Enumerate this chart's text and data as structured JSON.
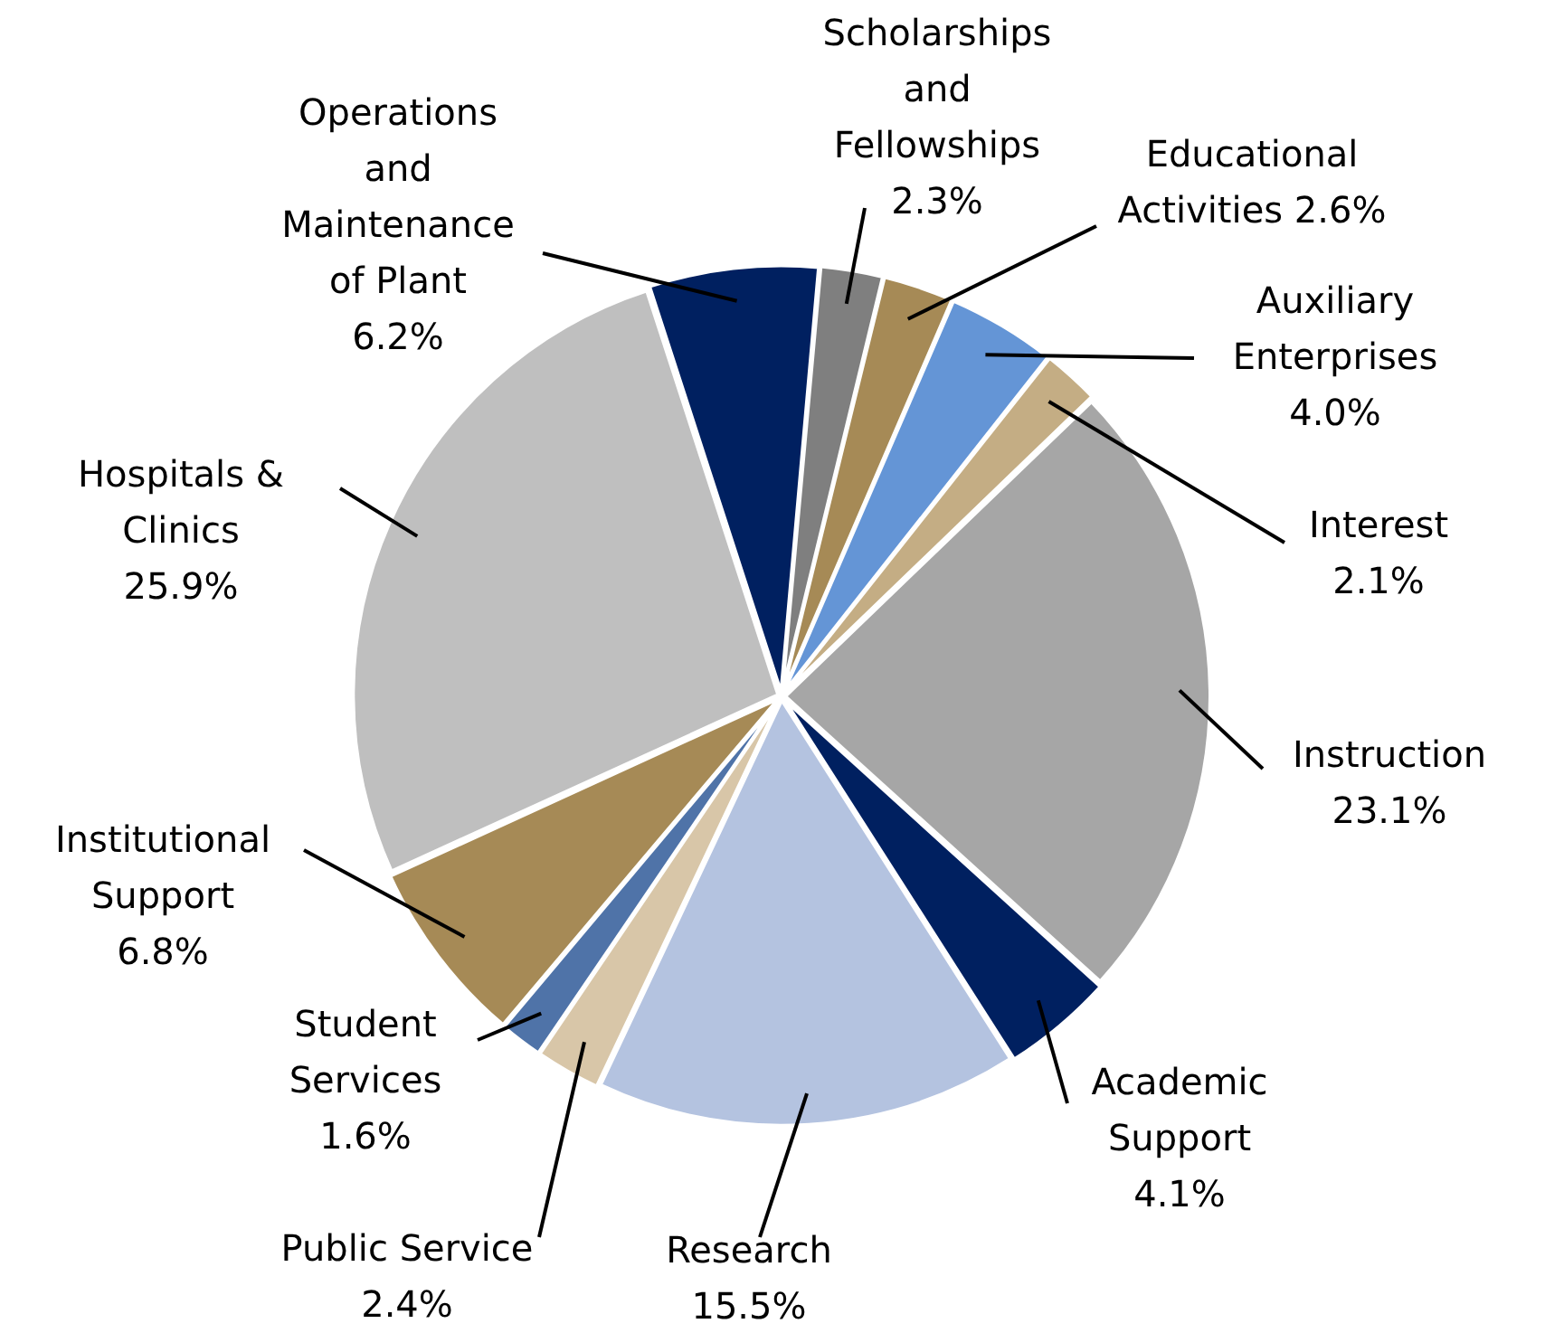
{
  "chart_data": {
    "type": "pie",
    "categories": [
      "Operations and Maintenance of Plant",
      "Scholarships and Fellowships",
      "Educational Activities",
      "Auxiliary Enterprises",
      "Interest",
      "Instruction",
      "Academic Support",
      "Research",
      "Public Service",
      "Student Services",
      "Institutional Support",
      "Hospitals & Clinics"
    ],
    "values": [
      6.2,
      2.3,
      2.6,
      4.0,
      2.1,
      23.1,
      4.1,
      15.5,
      2.4,
      1.6,
      6.8,
      25.9
    ],
    "value_labels": [
      "6.2%",
      "2.3%",
      "2.6%",
      "4.0%",
      "2.1%",
      "23.1%",
      "4.1%",
      "15.5%",
      "2.4%",
      "1.6%",
      "6.8%",
      "25.9%"
    ],
    "colors": [
      "#002060",
      "#7f7f7f",
      "#a68a56",
      "#6495d6",
      "#c4ad84",
      "#a6a6a6",
      "#002060",
      "#b4c3e0",
      "#d8c6a8",
      "#4f73a8",
      "#a68a56",
      "#bfbfbf"
    ],
    "legend": false
  }
}
